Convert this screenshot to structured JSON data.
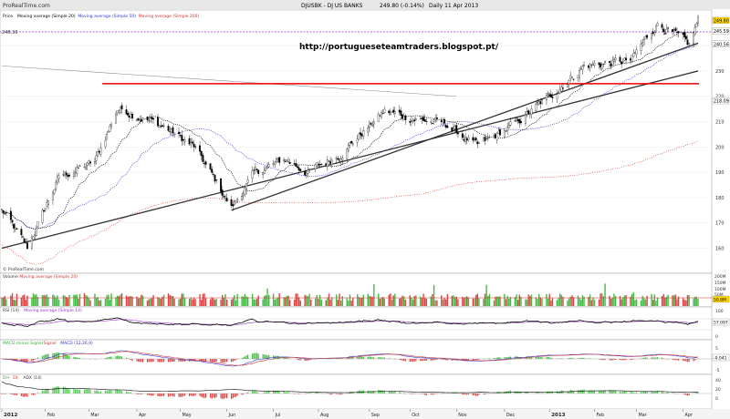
{
  "header": {
    "logo_text": "ProRealTime.com",
    "symbol": "DJUSBK - DJ US BANKS",
    "last": "249.80 (-0.14%)",
    "period": "Daily  11 Apr 2013"
  },
  "watermark": "http://portugueseteamtraders.blogspot.pt/",
  "footer_logo": "© ProRealTime.com",
  "panels": {
    "price": {
      "legend": [
        "Price",
        "Moving average (Simple 20)",
        "Moving average (Simple 50)",
        "Moving average (Simple 200)"
      ],
      "legend_colors": [
        "#000000",
        "#000000",
        "#3333cc",
        "#cc3333"
      ],
      "ticks": [
        160,
        170,
        180,
        190,
        200,
        210,
        220,
        230,
        240
      ],
      "badges": [
        {
          "value": "249.80",
          "color": "#ffd700"
        },
        {
          "value": "245.59",
          "color": "#ffffff"
        },
        {
          "value": "240.56",
          "color": "#ffffff"
        },
        {
          "value": "218.09",
          "color": "#ffffff"
        }
      ],
      "hline_label": "248.36"
    },
    "volume": {
      "legend": [
        "Volume",
        "Moving average (Simple 20)"
      ],
      "ticks": [
        "200M",
        "150M",
        "100M",
        "50M"
      ],
      "badge": "50.8M"
    },
    "rsi": {
      "legend": [
        "RSI (14)",
        "Moving average (Simple 14)"
      ],
      "ticks": [
        "100",
        "0"
      ],
      "badge": "57.097"
    },
    "macd": {
      "legend": [
        "MACD minus Signal",
        "Signal",
        "MACD (12,26,9)"
      ],
      "ticks": [
        "5",
        "0",
        "-5"
      ],
      "badge": "-0.041"
    },
    "dmi": {
      "legend": [
        "DI+",
        "DI-",
        "ADX (14)"
      ],
      "ticks": [
        "40",
        "20",
        "0"
      ]
    }
  },
  "x_axis": {
    "labels": [
      "2012",
      "Feb",
      "Mar",
      "Apr",
      "May",
      "Jun",
      "Jul",
      "Aug",
      "Sep",
      "Oct",
      "Nov",
      "Dec",
      "2013",
      "Feb",
      "Mar",
      "Apr"
    ]
  },
  "chart_data": {
    "type": "candlestick",
    "x_range": [
      "2012-01-03",
      "2013-04-11"
    ],
    "ylim": [
      153,
      253
    ],
    "colors": {
      "up": "#33aa33",
      "down": "#cc3333",
      "resistance": "#ee0000",
      "trendline": "#333333"
    },
    "price_anchors": [
      [
        "2012-01-03",
        175
      ],
      [
        "2012-01-20",
        160
      ],
      [
        "2012-02-10",
        188
      ],
      [
        "2012-03-05",
        194
      ],
      [
        "2012-03-20",
        215
      ],
      [
        "2012-03-27",
        214
      ],
      [
        "2012-04-20",
        208
      ],
      [
        "2012-05-10",
        200
      ],
      [
        "2012-05-25",
        186
      ],
      [
        "2012-06-04",
        176
      ],
      [
        "2012-06-20",
        190
      ],
      [
        "2012-07-10",
        195
      ],
      [
        "2012-07-25",
        190
      ],
      [
        "2012-08-15",
        197
      ],
      [
        "2012-09-14",
        214
      ],
      [
        "2012-10-05",
        211
      ],
      [
        "2012-10-25",
        209
      ],
      [
        "2012-11-15",
        200
      ],
      [
        "2012-12-10",
        209
      ],
      [
        "2012-12-31",
        219
      ],
      [
        "2013-01-25",
        232
      ],
      [
        "2013-02-25",
        234
      ],
      [
        "2013-03-15",
        249
      ],
      [
        "2013-04-05",
        240
      ],
      [
        "2013-04-11",
        250
      ]
    ],
    "resistance_level": 225,
    "support_trendline": [
      [
        "2012-06-04",
        175
      ],
      [
        "2013-04-11",
        241
      ]
    ],
    "secondary_trendline": [
      [
        "2012-01-03",
        160
      ],
      [
        "2013-04-11",
        230
      ]
    ],
    "resistance_line_descending": [
      [
        "2012-01-03",
        232
      ],
      [
        "2012-11-01",
        220
      ]
    ]
  }
}
